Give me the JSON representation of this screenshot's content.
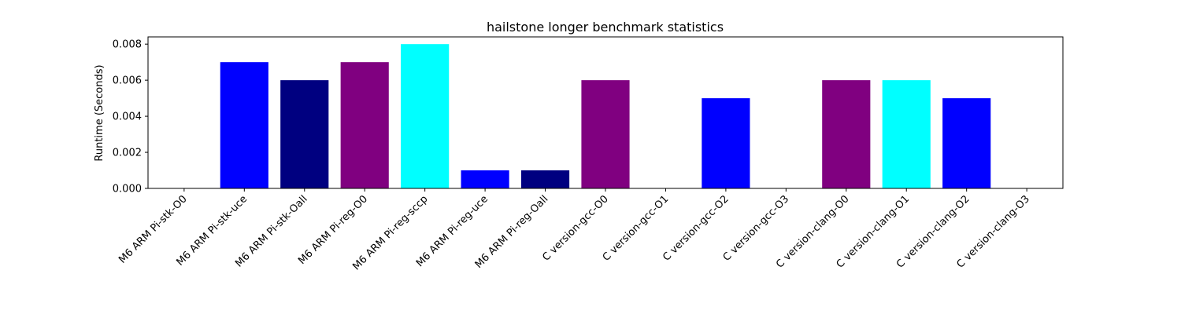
{
  "chart_data": {
    "type": "bar",
    "title": "hailstone longer benchmark statistics",
    "xlabel": "",
    "ylabel": "Runtime (Seconds)",
    "ylim": [
      0,
      0.0084
    ],
    "yticks": [
      "0.000",
      "0.002",
      "0.004",
      "0.006",
      "0.008"
    ],
    "ytick_values": [
      0,
      0.002,
      0.004,
      0.006,
      0.008
    ],
    "categories": [
      "M6 ARM Pi-stk-O0",
      "M6 ARM Pi-stk-uce",
      "M6 ARM Pi-stk-Oall",
      "M6 ARM Pi-reg-O0",
      "M6 ARM Pi-reg-sccp",
      "M6 ARM Pi-reg-uce",
      "M6 ARM Pi-reg-Oall",
      "C version-gcc-O0",
      "C version-gcc-O1",
      "C version-gcc-O2",
      "C version-gcc-O3",
      "C version-clang-O0",
      "C version-clang-O1",
      "C version-clang-O2",
      "C version-clang-O3"
    ],
    "values": [
      0,
      0.007,
      0.006,
      0.007,
      0.008,
      0.001,
      0.001,
      0.006,
      0,
      0.005,
      0,
      0.006,
      0.006,
      0.005,
      0
    ],
    "colors": [
      "#008000",
      "#0000ff",
      "#000080",
      "#800080",
      "#00ffff",
      "#0000ff",
      "#000080",
      "#800080",
      "#00ffff",
      "#0000ff",
      "#000080",
      "#800080",
      "#00ffff",
      "#0000ff",
      "#000080"
    ],
    "grid": false,
    "legend": "none"
  }
}
